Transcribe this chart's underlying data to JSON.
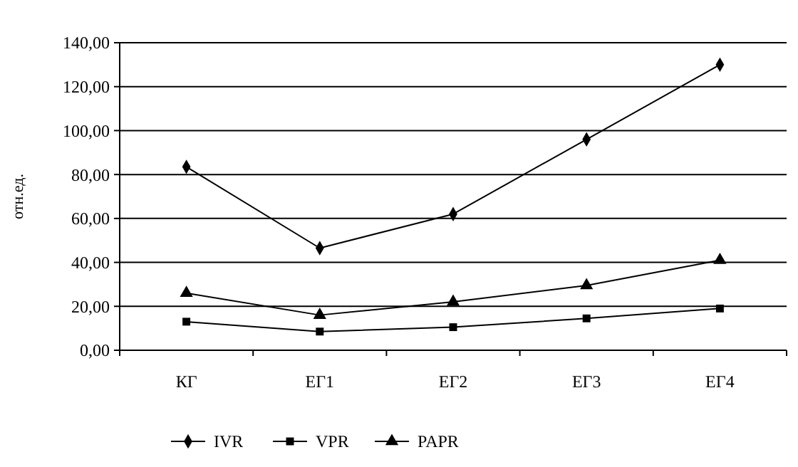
{
  "chart_data": {
    "type": "line",
    "ylabel": "отн.ед.",
    "categories": [
      "КГ",
      "ЕГ1",
      "ЕГ2",
      "ЕГ3",
      "ЕГ4"
    ],
    "series": [
      {
        "name": "IVR",
        "color": "#000000",
        "marker": "diamond",
        "values": [
          83.5,
          46.5,
          62,
          96,
          130
        ]
      },
      {
        "name": "VPR",
        "color": "#000000",
        "marker": "square",
        "values": [
          13,
          8.5,
          10.5,
          14.5,
          19
        ]
      },
      {
        "name": "PAPR",
        "color": "#000000",
        "marker": "triangle",
        "values": [
          26,
          16,
          22,
          29.5,
          41
        ]
      }
    ],
    "ylim": [
      0,
      140
    ],
    "yticks": [
      {
        "value": 0,
        "label": "0,00"
      },
      {
        "value": 20,
        "label": "20,00"
      },
      {
        "value": 40,
        "label": "40,00"
      },
      {
        "value": 60,
        "label": "60,00"
      },
      {
        "value": 80,
        "label": "80,00"
      },
      {
        "value": 100,
        "label": "100,00"
      },
      {
        "value": 120,
        "label": "120,00"
      },
      {
        "value": 140,
        "label": "140,00"
      }
    ],
    "grid": "y",
    "legend": "bottom",
    "line_style": "solid"
  }
}
